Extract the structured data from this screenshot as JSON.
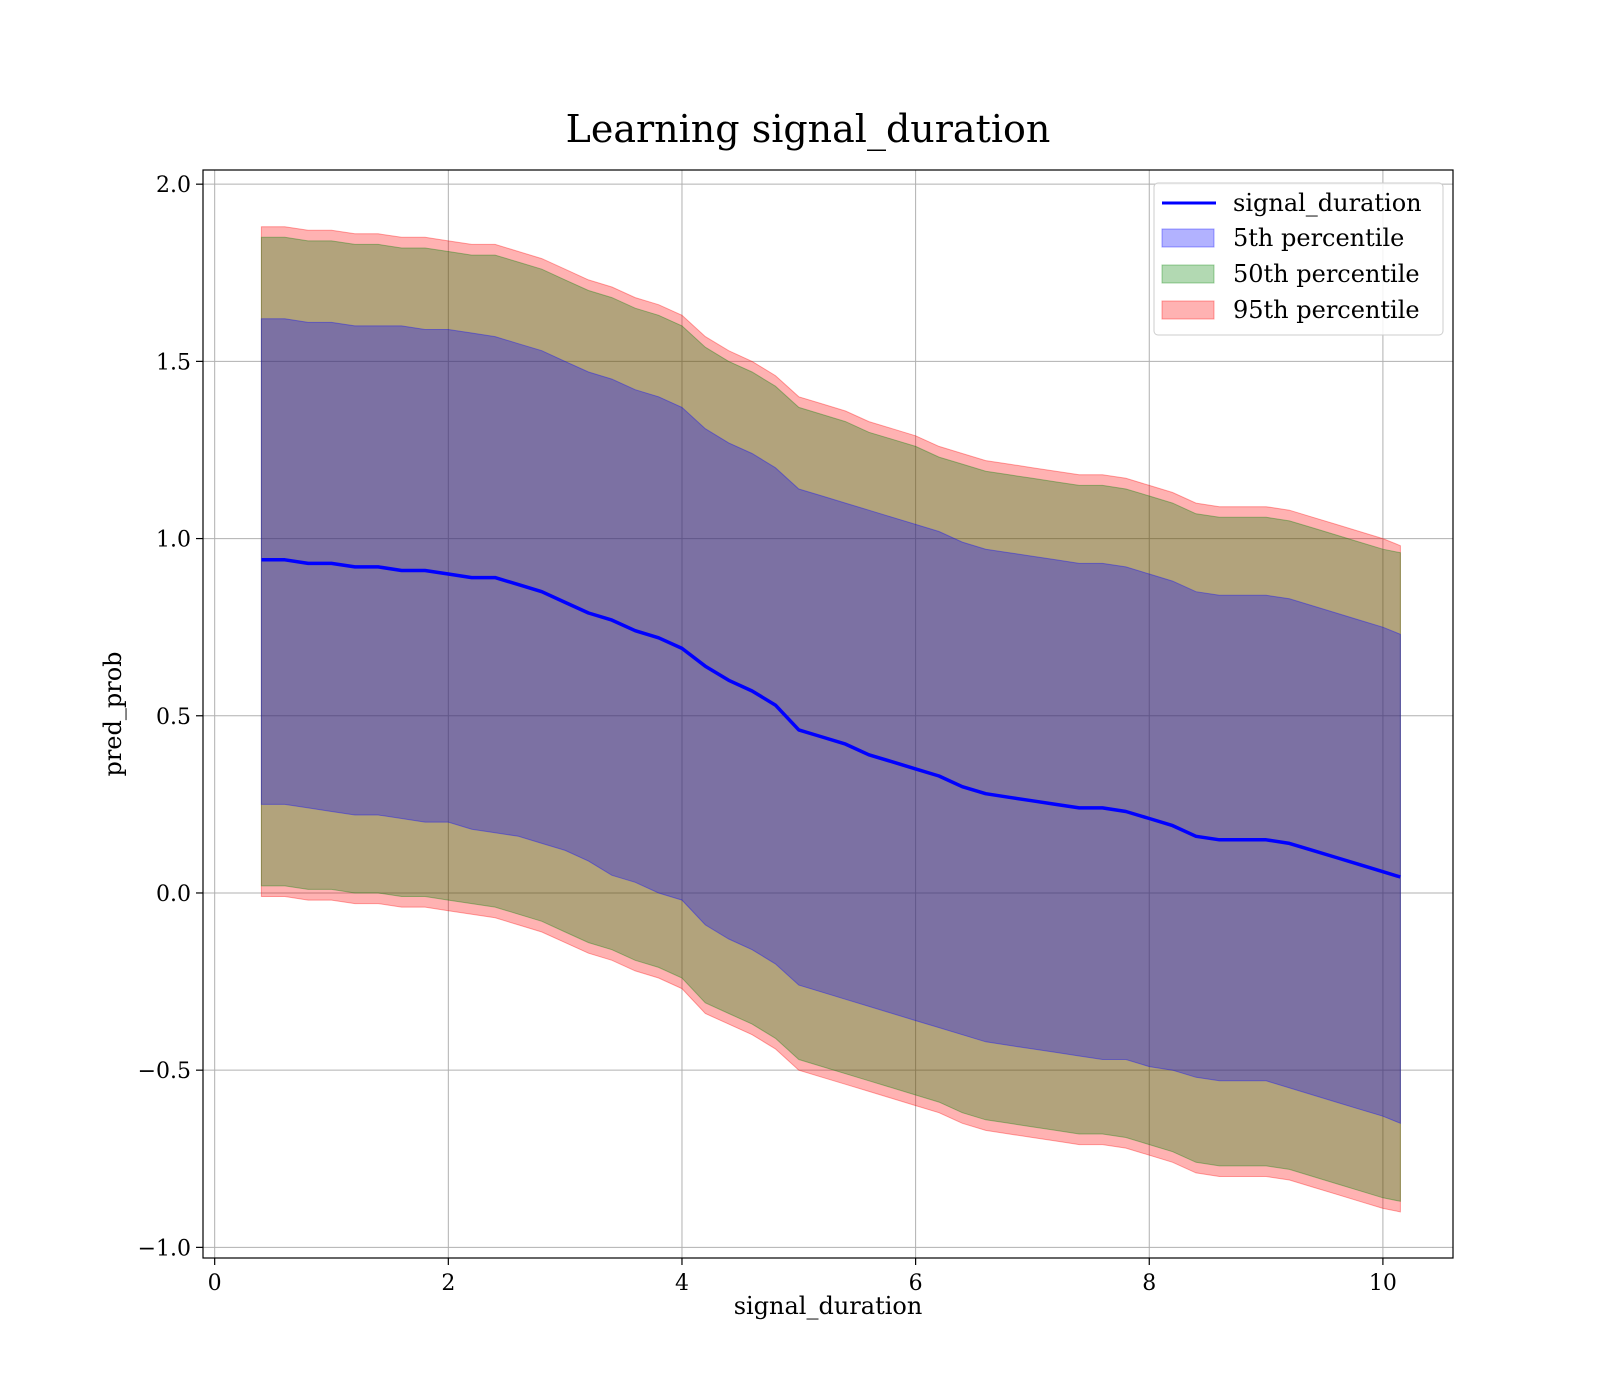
{
  "chart_data": {
    "type": "area",
    "title": "Learning signal_duration",
    "xlabel": "signal_duration",
    "ylabel": "pred_prob",
    "xlim": [
      -0.1,
      10.6
    ],
    "ylim": [
      -1.03,
      2.04
    ],
    "xticks": [
      0,
      2,
      4,
      6,
      8,
      10
    ],
    "xtick_labels": [
      "0",
      "2",
      "4",
      "6",
      "8",
      "10"
    ],
    "yticks": [
      -1.0,
      -0.5,
      0.0,
      0.5,
      1.0,
      1.5,
      2.0
    ],
    "ytick_labels": [
      "−1.0",
      "−0.5",
      "0.0",
      "0.5",
      "1.0",
      "1.5",
      "2.0"
    ],
    "grid": true,
    "legend_position": "top-right",
    "x": [
      0.4,
      0.6,
      0.8,
      1.0,
      1.2,
      1.4,
      1.6,
      1.8,
      2.0,
      2.2,
      2.4,
      2.6,
      2.8,
      3.0,
      3.2,
      3.4,
      3.6,
      3.8,
      4.0,
      4.2,
      4.4,
      4.6,
      4.8,
      5.0,
      5.2,
      5.4,
      5.6,
      5.8,
      6.0,
      6.2,
      6.4,
      6.6,
      6.8,
      7.0,
      7.2,
      7.4,
      7.6,
      7.8,
      8.0,
      8.2,
      8.4,
      8.6,
      8.8,
      9.0,
      9.2,
      9.4,
      9.6,
      9.8,
      10.0,
      10.15
    ],
    "series": [
      {
        "name": "signal_duration",
        "color": "#0000ff",
        "values": [
          0.94,
          0.94,
          0.93,
          0.93,
          0.92,
          0.92,
          0.91,
          0.91,
          0.9,
          0.89,
          0.89,
          0.87,
          0.85,
          0.82,
          0.79,
          0.77,
          0.74,
          0.72,
          0.69,
          0.64,
          0.6,
          0.57,
          0.53,
          0.46,
          0.44,
          0.42,
          0.39,
          0.37,
          0.35,
          0.33,
          0.3,
          0.28,
          0.27,
          0.26,
          0.25,
          0.24,
          0.24,
          0.23,
          0.21,
          0.19,
          0.16,
          0.15,
          0.15,
          0.15,
          0.14,
          0.12,
          0.1,
          0.08,
          0.06,
          0.045
        ]
      }
    ],
    "bands": [
      {
        "name": "5th percentile",
        "color": "#0000ff",
        "lower": [
          0.25,
          0.25,
          0.24,
          0.23,
          0.22,
          0.22,
          0.21,
          0.2,
          0.2,
          0.18,
          0.17,
          0.16,
          0.14,
          0.12,
          0.09,
          0.05,
          0.03,
          0.0,
          -0.02,
          -0.09,
          -0.13,
          -0.16,
          -0.2,
          -0.26,
          -0.28,
          -0.3,
          -0.32,
          -0.34,
          -0.36,
          -0.38,
          -0.4,
          -0.42,
          -0.43,
          -0.44,
          -0.45,
          -0.46,
          -0.47,
          -0.47,
          -0.49,
          -0.5,
          -0.52,
          -0.53,
          -0.53,
          -0.53,
          -0.55,
          -0.57,
          -0.59,
          -0.61,
          -0.63,
          -0.65
        ],
        "upper": [
          1.62,
          1.62,
          1.61,
          1.61,
          1.6,
          1.6,
          1.6,
          1.59,
          1.59,
          1.58,
          1.57,
          1.55,
          1.53,
          1.5,
          1.47,
          1.45,
          1.42,
          1.4,
          1.37,
          1.31,
          1.27,
          1.24,
          1.2,
          1.14,
          1.12,
          1.1,
          1.08,
          1.06,
          1.04,
          1.02,
          0.99,
          0.97,
          0.96,
          0.95,
          0.94,
          0.93,
          0.93,
          0.92,
          0.9,
          0.88,
          0.85,
          0.84,
          0.84,
          0.84,
          0.83,
          0.81,
          0.79,
          0.77,
          0.75,
          0.73
        ]
      },
      {
        "name": "50th percentile",
        "color": "#008000",
        "lower": [
          0.02,
          0.02,
          0.01,
          0.01,
          0.0,
          0.0,
          -0.01,
          -0.01,
          -0.02,
          -0.03,
          -0.04,
          -0.06,
          -0.08,
          -0.11,
          -0.14,
          -0.16,
          -0.19,
          -0.21,
          -0.24,
          -0.31,
          -0.34,
          -0.37,
          -0.41,
          -0.47,
          -0.49,
          -0.51,
          -0.53,
          -0.55,
          -0.57,
          -0.59,
          -0.62,
          -0.64,
          -0.65,
          -0.66,
          -0.67,
          -0.68,
          -0.68,
          -0.69,
          -0.71,
          -0.73,
          -0.76,
          -0.77,
          -0.77,
          -0.77,
          -0.78,
          -0.8,
          -0.82,
          -0.84,
          -0.86,
          -0.87
        ],
        "upper": [
          1.85,
          1.85,
          1.84,
          1.84,
          1.83,
          1.83,
          1.82,
          1.82,
          1.81,
          1.8,
          1.8,
          1.78,
          1.76,
          1.73,
          1.7,
          1.68,
          1.65,
          1.63,
          1.6,
          1.54,
          1.5,
          1.47,
          1.43,
          1.37,
          1.35,
          1.33,
          1.3,
          1.28,
          1.26,
          1.23,
          1.21,
          1.19,
          1.18,
          1.17,
          1.16,
          1.15,
          1.15,
          1.14,
          1.12,
          1.1,
          1.07,
          1.06,
          1.06,
          1.06,
          1.05,
          1.03,
          1.01,
          0.99,
          0.97,
          0.96
        ]
      },
      {
        "name": "95th percentile",
        "color": "#ff0000",
        "lower": [
          -0.01,
          -0.01,
          -0.02,
          -0.02,
          -0.03,
          -0.03,
          -0.04,
          -0.04,
          -0.05,
          -0.06,
          -0.07,
          -0.09,
          -0.11,
          -0.14,
          -0.17,
          -0.19,
          -0.22,
          -0.24,
          -0.27,
          -0.34,
          -0.37,
          -0.4,
          -0.44,
          -0.5,
          -0.52,
          -0.54,
          -0.56,
          -0.58,
          -0.6,
          -0.62,
          -0.65,
          -0.67,
          -0.68,
          -0.69,
          -0.7,
          -0.71,
          -0.71,
          -0.72,
          -0.74,
          -0.76,
          -0.79,
          -0.8,
          -0.8,
          -0.8,
          -0.81,
          -0.83,
          -0.85,
          -0.87,
          -0.89,
          -0.9
        ],
        "upper": [
          1.88,
          1.88,
          1.87,
          1.87,
          1.86,
          1.86,
          1.85,
          1.85,
          1.84,
          1.83,
          1.83,
          1.81,
          1.79,
          1.76,
          1.73,
          1.71,
          1.68,
          1.66,
          1.63,
          1.57,
          1.53,
          1.5,
          1.46,
          1.4,
          1.38,
          1.36,
          1.33,
          1.31,
          1.29,
          1.26,
          1.24,
          1.22,
          1.21,
          1.2,
          1.19,
          1.18,
          1.18,
          1.17,
          1.15,
          1.13,
          1.1,
          1.09,
          1.09,
          1.09,
          1.08,
          1.06,
          1.04,
          1.02,
          1.0,
          0.98
        ]
      }
    ]
  }
}
